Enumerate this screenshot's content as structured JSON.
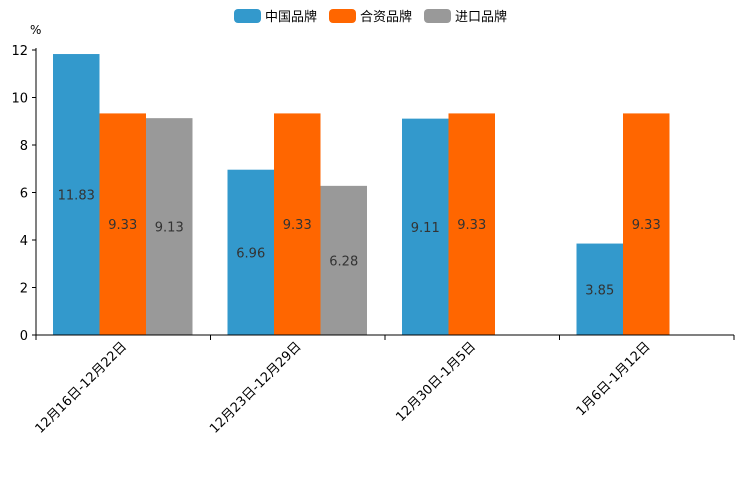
{
  "chart_data": {
    "type": "bar",
    "title": "",
    "xlabel": "",
    "ylabel": "%",
    "ylim": [
      0,
      12
    ],
    "yticks": [
      0,
      2,
      4,
      6,
      8,
      10,
      12
    ],
    "legend_position": "top-center",
    "grid": false,
    "categories": [
      "12月16日-12月22日",
      "12月23日-12月29日",
      "12月30日-1月5日",
      "1月6日-1月12日"
    ],
    "series": [
      {
        "name": "中国品牌",
        "color": "#3399cc",
        "values": [
          11.83,
          6.96,
          9.11,
          3.85
        ]
      },
      {
        "name": "合资品牌",
        "color": "#ff6600",
        "values": [
          9.33,
          9.33,
          9.33,
          9.33
        ]
      },
      {
        "name": "进口品牌",
        "color": "#999999",
        "values": [
          9.13,
          6.28,
          null,
          null
        ]
      }
    ]
  }
}
